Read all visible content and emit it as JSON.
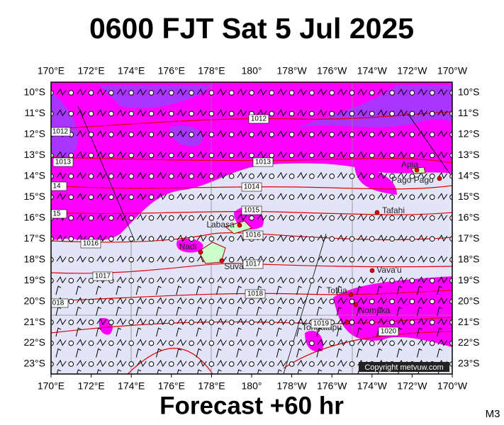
{
  "header": {
    "title": "0600 FJT Sat 5 Jul 2025"
  },
  "footer": {
    "forecast": "Forecast +60 hr",
    "model": "M3"
  },
  "copyright": "Copyright metvuw.com",
  "longitude_labels": [
    "170°E",
    "172°E",
    "174°E",
    "176°E",
    "178°E",
    "180°",
    "178°W",
    "176°W",
    "174°W",
    "172°W",
    "170°W"
  ],
  "latitude_labels": [
    "10°S",
    "11°S",
    "12°S",
    "13°S",
    "14°S",
    "15°S",
    "16°S",
    "17°S",
    "18°S",
    "19°S",
    "20°S",
    "21°S",
    "22°S",
    "23°S"
  ],
  "isobar_labels": [
    "1012",
    "1012",
    "1013",
    "1013",
    "14",
    "1014",
    "15",
    "1015",
    "1016",
    "1016",
    "1017",
    "1017",
    "018",
    "1018",
    "1019",
    "1020"
  ],
  "places": [
    "Apia",
    "Pago Pago",
    "Tafahi",
    "Labasa",
    "Nadi",
    "Suva",
    "Vava'u",
    "Tofua",
    "Nomuka",
    "Tongatapu"
  ]
}
